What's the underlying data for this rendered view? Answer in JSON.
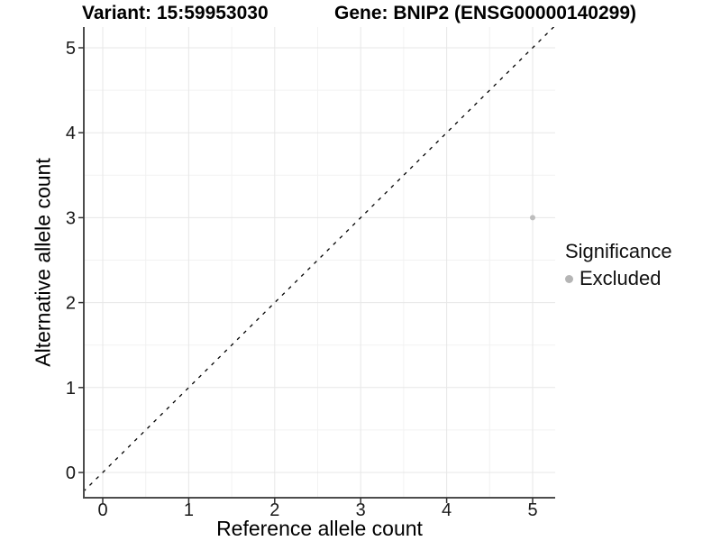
{
  "chart_data": {
    "type": "scatter",
    "title_left": "Variant: 15:59953030",
    "title_right": "Gene: BNIP2 (ENSG00000140299)",
    "xlabel": "Reference allele count",
    "ylabel": "Alternative allele count",
    "xticks": [
      0,
      1,
      2,
      3,
      4,
      5
    ],
    "yticks": [
      0,
      1,
      2,
      3,
      4,
      5
    ],
    "xlim": [
      -0.22,
      5.26
    ],
    "ylim": [
      -0.3,
      5.24
    ],
    "grid": {
      "major": true,
      "minor": true
    },
    "identity_line": {
      "type": "y=x",
      "style": "dashed",
      "color": "#000000"
    },
    "series": [
      {
        "name": "Excluded",
        "color": "#bdbdbd",
        "points": [
          {
            "x": 5,
            "y": 3
          }
        ]
      }
    ],
    "legend": {
      "position": "right",
      "title": "Significance",
      "entries": [
        {
          "label": "Excluded",
          "color": "#b5b5b5",
          "marker": "circle"
        }
      ]
    }
  },
  "colors": {
    "background": "#ffffff",
    "grid_major": "#e7e7e7",
    "grid_minor": "#f2f2f2",
    "axis_line": "#4d4d4d",
    "tick_mark": "#333333",
    "tick_label": "#1a1a1a"
  }
}
